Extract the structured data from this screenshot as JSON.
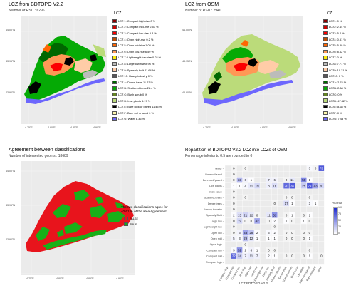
{
  "panels": {
    "p1": {
      "title": "LCZ from   BDTOPO V2.2",
      "subtitle": "Number of RSU : 6296",
      "legend_title": "LCZ"
    },
    "p2": {
      "title": "LCZ from   OSM",
      "subtitle": "Number of RSU : 2940",
      "legend_title": "LCZ"
    },
    "p3": {
      "title": "Agreement between classifications",
      "subtitle": "Number of intersected geoms : 18689",
      "agree_line1": "The two classifications agree for",
      "agree_line2": "40.61 % of the area Agreement",
      "legend": [
        {
          "label": "FALSE",
          "color": "#e8141c"
        },
        {
          "label": "TRUE",
          "color": "#18b018"
        }
      ]
    },
    "p4": {
      "title": "Repartition of   BDTOPO V2.2   LCZ into LCZs of   OSM",
      "subtitle": "Percentage inferior to 0.5 are rounded to 0",
      "xlabel": "LCZ BDTOPO V2.2",
      "colorbar_title": "% area",
      "colorbar_ticks": [
        "100",
        "75",
        "50",
        "25",
        "0"
      ]
    }
  },
  "map_axes": {
    "lat_ticks": [
      "44.00°N",
      "43.95°N",
      "43.90°N"
    ],
    "lon_ticks": [
      "4.75°E",
      "4.80°E",
      "4.85°E",
      "4.90°E"
    ]
  },
  "legend_p1": [
    {
      "label": "LCZ 1: Compact high-rise 0 %",
      "color": "#8b0101"
    },
    {
      "label": "LCZ 2: Compact mid-rise 2.53 %",
      "color": "#cc0200"
    },
    {
      "label": "LCZ 3: Compact low-rise 5.4 %",
      "color": "#fc0001"
    },
    {
      "label": "LCZ 4: Open high-rise 0.2 %",
      "color": "#be4c03"
    },
    {
      "label": "LCZ 5: Open mid-rise 1.05 %",
      "color": "#ff6602"
    },
    {
      "label": "LCZ 6: Open low-rise 6.59 %",
      "color": "#ff9856"
    },
    {
      "label": "LCZ 7: Lightweight low-rise 0.02 %",
      "color": "#fbed08"
    },
    {
      "label": "LCZ 8: Large low-rise 8.96 %",
      "color": "#bcbcba"
    },
    {
      "label": "LCZ 9: Sparsely built 11.64 %",
      "color": "#ffcca7"
    },
    {
      "label": "LCZ 10: Heavy industry 0 %",
      "color": "#57555a"
    },
    {
      "label": "LCZ A: Dense trees 11.23 %",
      "color": "#006700"
    },
    {
      "label": "LCZ B: Scattered trees 28.4 %",
      "color": "#05aa05"
    },
    {
      "label": "LCZ C: Bush scrub 0 %",
      "color": "#648423"
    },
    {
      "label": "LCZ D: Low plants 6.17 %",
      "color": "#bbdb7a"
    },
    {
      "label": "LCZ E: Bare rock or paved 11.45 %",
      "color": "#010101"
    },
    {
      "label": "LCZ F: Bare soil or sand 0 %",
      "color": "#fdf6ae"
    },
    {
      "label": "LCZ G: Water 8.36 %",
      "color": "#6d67fd"
    }
  ],
  "legend_p2": [
    {
      "label": "LCZ1: 0 %",
      "color": "#8b0101"
    },
    {
      "label": "LCZ2: 2.44 %",
      "color": "#cc0200"
    },
    {
      "label": "LCZ3: 5.4 %",
      "color": "#fc0001"
    },
    {
      "label": "LCZ4: 0.51 %",
      "color": "#be4c03"
    },
    {
      "label": "LCZ5: 5.89 %",
      "color": "#ff6602"
    },
    {
      "label": "LCZ6: 8.62 %",
      "color": "#ff9856"
    },
    {
      "label": "LCZ7: 0 %",
      "color": "#fbed08"
    },
    {
      "label": "LCZ8: 7.71 %",
      "color": "#bcbcba"
    },
    {
      "label": "LCZ9: 10.21 %",
      "color": "#ffcca7"
    },
    {
      "label": "LCZ10: 0 %",
      "color": "#57555a"
    },
    {
      "label": "LCZA: 2.78 %",
      "color": "#006700"
    },
    {
      "label": "LCZB: 2.68 %",
      "color": "#05aa05"
    },
    {
      "label": "LCZC: 0 %",
      "color": "#648423"
    },
    {
      "label": "LCZD: 47.42 %",
      "color": "#bbdb7a"
    },
    {
      "label": "LCZE: 8.68 %",
      "color": "#010101"
    },
    {
      "label": "LCZF: 0 %",
      "color": "#fdf6ae"
    },
    {
      "label": "LCZG: 7.43 %",
      "color": "#6d67fd"
    }
  ],
  "chart_data": {
    "type": "heatmap",
    "title": "Repartition of   BDTOPO V2.2   LCZ into LCZs of   OSM",
    "subtitle": "Percentage inferior to 0.5 are rounded to 0",
    "xlabel": "LCZ BDTOPO V2.2",
    "ylabel": "",
    "x_categories": [
      "Compact high",
      "Compact mid",
      "Compact low",
      "Open high",
      "Open mid",
      "Open low",
      "Lightweight low",
      "Large low",
      "Sparsely Built",
      "Heavy industry",
      "Dense trees",
      "Scattered trees",
      "Bush scrub",
      "Low plants",
      "Bare rock/paved",
      "Bare soil/sand",
      "Water"
    ],
    "y_categories": [
      "Compact high",
      "Compact mid",
      "Compact low",
      "Open high",
      "Open mid",
      "Open low",
      "Lightweight low",
      "Large low",
      "Sparsely Built",
      "Heavy industry",
      "Dense trees",
      "Scattered trees",
      "Bush scrub",
      "Low plants",
      "Bare rock/paved",
      "Bare soil/sand",
      "Water"
    ],
    "cells": [
      {
        "x": "Compact mid",
        "y": "Compact mid",
        "v": 72
      },
      {
        "x": "Compact low",
        "y": "Compact mid",
        "v": 24
      },
      {
        "x": "Open high",
        "y": "Compact mid",
        "v": 7
      },
      {
        "x": "Open mid",
        "y": "Compact mid",
        "v": 11
      },
      {
        "x": "Open low",
        "y": "Compact mid",
        "v": 7
      },
      {
        "x": "Large low",
        "y": "Compact mid",
        "v": 2
      },
      {
        "x": "Sparsely Built",
        "y": "Compact mid",
        "v": 1
      },
      {
        "x": "Dense trees",
        "y": "Compact mid",
        "v": 0
      },
      {
        "x": "Scattered trees",
        "y": "Compact mid",
        "v": 0
      },
      {
        "x": "Low plants",
        "y": "Compact mid",
        "v": 0
      },
      {
        "x": "Bare rock/paved",
        "y": "Compact mid",
        "v": 1
      },
      {
        "x": "Water",
        "y": "Compact mid",
        "v": 0
      },
      {
        "x": "Compact mid",
        "y": "Compact low",
        "v": 3
      },
      {
        "x": "Compact low",
        "y": "Compact low",
        "v": 52
      },
      {
        "x": "Open high",
        "y": "Compact low",
        "v": 2
      },
      {
        "x": "Open mid",
        "y": "Compact low",
        "v": 6
      },
      {
        "x": "Open low",
        "y": "Compact low",
        "v": 1
      },
      {
        "x": "Large low",
        "y": "Compact low",
        "v": 0
      },
      {
        "x": "Sparsely Built",
        "y": "Compact low",
        "v": 0
      },
      {
        "x": "Bare rock/paved",
        "y": "Compact low",
        "v": 0
      },
      {
        "x": "Open high",
        "y": "Open high",
        "v": 0
      },
      {
        "x": "Compact mid",
        "y": "Open mid",
        "v": 5
      },
      {
        "x": "Compact low",
        "y": "Open mid",
        "v": 3
      },
      {
        "x": "Open high",
        "y": "Open mid",
        "v": 29
      },
      {
        "x": "Open mid",
        "y": "Open mid",
        "v": 12
      },
      {
        "x": "Open low",
        "y": "Open mid",
        "v": 1
      },
      {
        "x": "Large low",
        "y": "Open mid",
        "v": 1
      },
      {
        "x": "Sparsely Built",
        "y": "Open mid",
        "v": 1
      },
      {
        "x": "Dense trees",
        "y": "Open mid",
        "v": 0
      },
      {
        "x": "Scattered trees",
        "y": "Open mid",
        "v": 0
      },
      {
        "x": "Low plants",
        "y": "Open mid",
        "v": 0
      },
      {
        "x": "Bare rock/paved",
        "y": "Open mid",
        "v": 1
      },
      {
        "x": "Compact mid",
        "y": "Open low",
        "v": 0
      },
      {
        "x": "Compact low",
        "y": "Open low",
        "v": 6
      },
      {
        "x": "Open high",
        "y": "Open low",
        "v": 43
      },
      {
        "x": "Open mid",
        "y": "Open low",
        "v": 28
      },
      {
        "x": "Open low",
        "y": "Open low",
        "v": 2
      },
      {
        "x": "Large low",
        "y": "Open low",
        "v": 3
      },
      {
        "x": "Sparsely Built",
        "y": "Open low",
        "v": 2
      },
      {
        "x": "Dense trees",
        "y": "Open low",
        "v": 0
      },
      {
        "x": "Scattered trees",
        "y": "Open low",
        "v": 0
      },
      {
        "x": "Low plants",
        "y": "Open low",
        "v": 0
      },
      {
        "x": "Bare rock/paved",
        "y": "Open low",
        "v": 0
      },
      {
        "x": "Compact mid",
        "y": "Lightweight low",
        "v": 0
      },
      {
        "x": "Sparsely Built",
        "y": "Lightweight low",
        "v": 0
      },
      {
        "x": "Compact mid",
        "y": "Large low",
        "v": 0
      },
      {
        "x": "Compact low",
        "y": "Large low",
        "v": 19
      },
      {
        "x": "Open high",
        "y": "Large low",
        "v": 0
      },
      {
        "x": "Open mid",
        "y": "Large low",
        "v": 0
      },
      {
        "x": "Open low",
        "y": "Large low",
        "v": 42
      },
      {
        "x": "Large low",
        "y": "Large low",
        "v": 0
      },
      {
        "x": "Sparsely Built",
        "y": "Large low",
        "v": 2
      },
      {
        "x": "Dense trees",
        "y": "Large low",
        "v": 1
      },
      {
        "x": "Scattered trees",
        "y": "Large low",
        "v": 0
      },
      {
        "x": "Low plants",
        "y": "Large low",
        "v": 1
      },
      {
        "x": "Bare rock/paved",
        "y": "Large low",
        "v": 0
      },
      {
        "x": "Compact mid",
        "y": "Sparsely Built",
        "v": 2
      },
      {
        "x": "Compact low",
        "y": "Sparsely Built",
        "v": 15
      },
      {
        "x": "Open high",
        "y": "Sparsely Built",
        "v": 21
      },
      {
        "x": "Open mid",
        "y": "Sparsely Built",
        "v": 12
      },
      {
        "x": "Open low",
        "y": "Sparsely Built",
        "v": 0
      },
      {
        "x": "Large low",
        "y": "Sparsely Built",
        "v": 11
      },
      {
        "x": "Sparsely Built",
        "y": "Sparsely Built",
        "v": 51
      },
      {
        "x": "Dense trees",
        "y": "Sparsely Built",
        "v": 0
      },
      {
        "x": "Scattered trees",
        "y": "Sparsely Built",
        "v": 1
      },
      {
        "x": "Low plants",
        "y": "Sparsely Built",
        "v": 0
      },
      {
        "x": "Bare rock/paved",
        "y": "Sparsely Built",
        "v": 1
      },
      {
        "x": "Compact mid",
        "y": "Heavy industry",
        "v": 0
      },
      {
        "x": "Compact mid",
        "y": "Dense trees",
        "v": 0
      },
      {
        "x": "Sparsely Built",
        "y": "Dense trees",
        "v": 0
      },
      {
        "x": "Dense trees",
        "y": "Dense trees",
        "v": 17
      },
      {
        "x": "Scattered trees",
        "y": "Dense trees",
        "v": 1
      },
      {
        "x": "Bare rock/paved",
        "y": "Dense trees",
        "v": 3
      },
      {
        "x": "Bare soil/sand",
        "y": "Dense trees",
        "v": 1
      },
      {
        "x": "Compact mid",
        "y": "Scattered trees",
        "v": 0
      },
      {
        "x": "Open high",
        "y": "Scattered trees",
        "v": 0
      },
      {
        "x": "Dense trees",
        "y": "Scattered trees",
        "v": 0
      },
      {
        "x": "Scattered trees",
        "y": "Scattered trees",
        "v": 0
      },
      {
        "x": "Bare rock/paved",
        "y": "Scattered trees",
        "v": 0
      },
      {
        "x": "Compact mid",
        "y": "Bush scrub",
        "v": 0
      },
      {
        "x": "Compact mid",
        "y": "Low plants",
        "v": 1
      },
      {
        "x": "Compact low",
        "y": "Low plants",
        "v": 1
      },
      {
        "x": "Open high",
        "y": "Low plants",
        "v": 4
      },
      {
        "x": "Open mid",
        "y": "Low plants",
        "v": 11
      },
      {
        "x": "Open low",
        "y": "Low plants",
        "v": 19
      },
      {
        "x": "Large low",
        "y": "Low plants",
        "v": 8
      },
      {
        "x": "Sparsely Built",
        "y": "Low plants",
        "v": 16
      },
      {
        "x": "Dense trees",
        "y": "Low plants",
        "v": 70
      },
      {
        "x": "Scattered trees",
        "y": "Low plants",
        "v": 78
      },
      {
        "x": "Low plants",
        "y": "Low plants",
        "v": 25
      },
      {
        "x": "Bare rock/paved",
        "y": "Low plants",
        "v": 79
      },
      {
        "x": "Bare soil/sand",
        "y": "Low plants",
        "v": 43
      },
      {
        "x": "Water",
        "y": "Low plants",
        "v": 20
      },
      {
        "x": "Compact mid",
        "y": "Bare rock/paved",
        "v": 0
      },
      {
        "x": "Compact low",
        "y": "Bare rock/paved",
        "v": 33
      },
      {
        "x": "Open high",
        "y": "Bare rock/paved",
        "v": 6
      },
      {
        "x": "Open mid",
        "y": "Bare rock/paved",
        "v": 1
      },
      {
        "x": "Large low",
        "y": "Bare rock/paved",
        "v": 7
      },
      {
        "x": "Sparsely Built",
        "y": "Bare rock/paved",
        "v": 6
      },
      {
        "x": "Dense trees",
        "y": "Bare rock/paved",
        "v": 0
      },
      {
        "x": "Scattered trees",
        "y": "Bare rock/paved",
        "v": 11
      },
      {
        "x": "Low plants",
        "y": "Bare rock/paved",
        "v": 56
      },
      {
        "x": "Bare rock/paved",
        "y": "Bare rock/paved",
        "v": 1
      },
      {
        "x": "Compact mid",
        "y": "Bare soil/sand",
        "v": 0
      },
      {
        "x": "Compact mid",
        "y": "Water",
        "v": 0
      },
      {
        "x": "Open high",
        "y": "Water",
        "v": 0
      },
      {
        "x": "Bare rock/paved",
        "y": "Water",
        "v": 3
      },
      {
        "x": "Bare soil/sand",
        "y": "Water",
        "v": 0
      },
      {
        "x": "Water",
        "y": "Water",
        "v": 79
      }
    ],
    "colorscale": {
      "title": "% area",
      "min": 0,
      "max": 100,
      "low": "#ffffff",
      "high": "#1f2ccf"
    }
  }
}
